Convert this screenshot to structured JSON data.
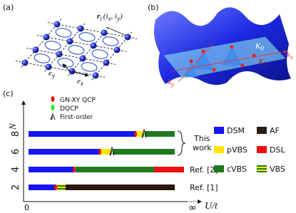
{
  "panel_labels": [
    "(a)",
    "(b)",
    "(c)"
  ],
  "panel_a": {
    "site_symbol": "r",
    "site_index": "i",
    "coord_parts": [
      "(i",
      "x",
      ", i",
      "y",
      ")"
    ],
    "unit_vectors": [
      {
        "symbol": "e",
        "index": "x"
      },
      {
        "symbol": "e",
        "index": "y"
      }
    ]
  },
  "panel_b": {
    "labels": [
      {
        "symbol": "K",
        "index": "0"
      },
      {
        "symbol": "X",
        "index": "1"
      },
      {
        "symbol": "k",
        "index": "x"
      },
      {
        "symbol": "k",
        "index": "y"
      }
    ]
  },
  "panel_c": {
    "markers": [
      "GN-XY QCP",
      "DQCP",
      "First-order"
    ],
    "y_label": "N",
    "yticks": [
      2,
      4,
      6,
      8
    ],
    "x_start": "0",
    "x_end": "∞",
    "x_label": "U/t",
    "phases": [
      {
        "name": "DSM",
        "color": "#1414f5"
      },
      {
        "name": "AF",
        "color": "#2a1a12"
      },
      {
        "name": "pVBS",
        "color": "#ffe600"
      },
      {
        "name": "DSL",
        "color": "#f01010"
      },
      {
        "name": "cVBS",
        "color": "#1f7a1f"
      },
      {
        "name": "VBS",
        "color": "#1f7a1f"
      }
    ],
    "this_work": [
      "This",
      "work"
    ],
    "refs": [
      "Ref. [2]",
      "Ref. [1]"
    ]
  }
}
